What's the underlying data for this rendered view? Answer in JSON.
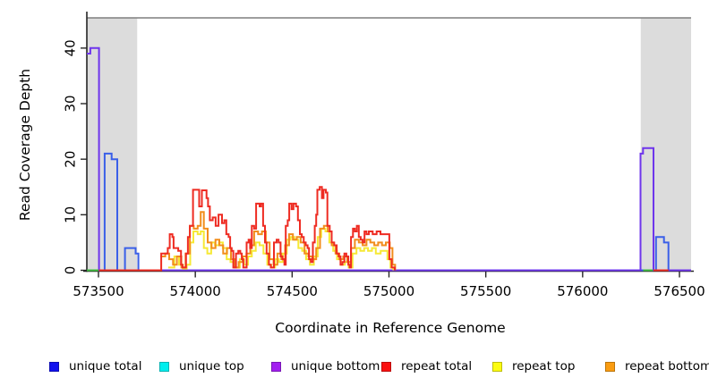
{
  "chart_data": {
    "type": "line",
    "step": true,
    "title": "",
    "xlabel": "Coordinate in Reference Genome",
    "ylabel": "Read Coverage Depth",
    "xlim": [
      573440,
      576560
    ],
    "ylim": [
      0,
      45
    ],
    "x_ticks": [
      573500,
      574000,
      574500,
      575000,
      575500,
      576000,
      576500
    ],
    "y_ticks": [
      0,
      10,
      20,
      30,
      40
    ],
    "grid": false,
    "legend_position": "bottom",
    "masked_regions": [
      {
        "name": "masked-region-left",
        "x0": 573440,
        "x1": 573700,
        "color": "#DCDCDC"
      },
      {
        "name": "masked-region-right",
        "x0": 576300,
        "x1": 576560,
        "color": "#DCDCDC"
      }
    ],
    "series": [
      {
        "name": "unique total",
        "line_color": "#3A5FE8",
        "swatch_color": "#1111EE",
        "segments": [
          [
            [
              573440,
              0
            ],
            [
              573532,
              21
            ],
            [
              573568,
              20
            ],
            [
              573597,
              0
            ],
            [
              573637,
              4
            ],
            [
              573692,
              3
            ],
            [
              573706,
              0
            ],
            [
              576379,
              6
            ],
            [
              576420,
              5
            ],
            [
              576443,
              0
            ],
            [
              576560,
              0
            ]
          ]
        ]
      },
      {
        "name": "unique top",
        "line_color": "#00EEEE",
        "swatch_color": "#00EEEE",
        "segments": []
      },
      {
        "name": "unique bottom",
        "line_color": "#6E35EC",
        "swatch_color": "#A21FF0",
        "segments": [
          [
            [
              573440,
              39
            ],
            [
              573458,
              40
            ],
            [
              573503,
              0
            ],
            [
              576299,
              21
            ],
            [
              576312,
              22
            ],
            [
              576366,
              0
            ],
            [
              576560,
              0
            ]
          ]
        ]
      },
      {
        "name": "repeat top",
        "line_color": "#F6E935",
        "swatch_color": "#FCFC11",
        "segments": [
          [
            [
              573860,
              0.5
            ],
            [
              573892,
              2.5
            ],
            [
              573916,
              1
            ],
            [
              573936,
              0.3
            ],
            [
              573956,
              1
            ],
            [
              573974,
              5
            ],
            [
              573990,
              7
            ],
            [
              574012,
              6.5
            ],
            [
              574028,
              7
            ],
            [
              574044,
              4
            ],
            [
              574062,
              3
            ],
            [
              574082,
              5
            ],
            [
              574102,
              4.5
            ],
            [
              574122,
              5
            ],
            [
              574142,
              4
            ],
            [
              574162,
              2
            ],
            [
              574182,
              1.5
            ],
            [
              574200,
              0.5
            ],
            [
              574230,
              2
            ],
            [
              574252,
              1
            ],
            [
              574272,
              2.5
            ],
            [
              574292,
              3.5
            ],
            [
              574312,
              5
            ],
            [
              574332,
              4.5
            ],
            [
              574352,
              3
            ],
            [
              574372,
              1
            ],
            [
              574392,
              0.5
            ],
            [
              574412,
              2
            ],
            [
              574432,
              1.5
            ],
            [
              574452,
              3
            ],
            [
              574472,
              5.5
            ],
            [
              574492,
              6
            ],
            [
              574512,
              5.5
            ],
            [
              574532,
              4
            ],
            [
              574552,
              3.5
            ],
            [
              574572,
              2
            ],
            [
              574592,
              1
            ],
            [
              574612,
              2.5
            ],
            [
              574632,
              6
            ],
            [
              574650,
              7.5
            ],
            [
              574672,
              7
            ],
            [
              574692,
              5
            ],
            [
              574712,
              3.5
            ],
            [
              574732,
              2
            ],
            [
              574752,
              1
            ],
            [
              574772,
              1.5
            ],
            [
              574792,
              0.5
            ],
            [
              574812,
              3
            ],
            [
              574832,
              4
            ],
            [
              574852,
              3.5
            ],
            [
              574872,
              4
            ],
            [
              574892,
              3.5
            ],
            [
              574912,
              4
            ],
            [
              574932,
              3
            ],
            [
              574957,
              3.5
            ],
            [
              574992,
              2
            ],
            [
              575008,
              0.5
            ],
            [
              575022,
              0
            ]
          ]
        ]
      },
      {
        "name": "repeat bottom",
        "line_color": "#F28D1C",
        "swatch_color": "#FA9C11",
        "segments": [
          [
            [
              573820,
              2.5
            ],
            [
              573845,
              3
            ],
            [
              573865,
              2
            ],
            [
              573885,
              1
            ],
            [
              573905,
              2.5
            ],
            [
              573928,
              0.5
            ],
            [
              573950,
              3
            ],
            [
              573972,
              8
            ],
            [
              573992,
              7.5
            ],
            [
              574012,
              8
            ],
            [
              574028,
              10.5
            ],
            [
              574044,
              7.5
            ],
            [
              574064,
              5
            ],
            [
              574084,
              4
            ],
            [
              574104,
              5.5
            ],
            [
              574124,
              4.5
            ],
            [
              574144,
              3
            ],
            [
              574164,
              4
            ],
            [
              574184,
              2
            ],
            [
              574204,
              0.5
            ],
            [
              574224,
              1.5
            ],
            [
              574244,
              2.5
            ],
            [
              574264,
              3
            ],
            [
              574284,
              4.5
            ],
            [
              574304,
              7
            ],
            [
              574324,
              6.5
            ],
            [
              574344,
              7
            ],
            [
              574364,
              5
            ],
            [
              574384,
              2
            ],
            [
              574404,
              1
            ],
            [
              574424,
              3
            ],
            [
              574444,
              2
            ],
            [
              574464,
              4.5
            ],
            [
              574484,
              6.5
            ],
            [
              574504,
              5.5
            ],
            [
              574524,
              6
            ],
            [
              574544,
              5
            ],
            [
              574564,
              3
            ],
            [
              574584,
              2.5
            ],
            [
              574604,
              2
            ],
            [
              574624,
              4
            ],
            [
              574644,
              7.5
            ],
            [
              574664,
              8
            ],
            [
              574684,
              7
            ],
            [
              574704,
              4.5
            ],
            [
              574724,
              3
            ],
            [
              574744,
              2
            ],
            [
              574764,
              2.5
            ],
            [
              574784,
              1.5
            ],
            [
              574804,
              4
            ],
            [
              574824,
              5.5
            ],
            [
              574844,
              5
            ],
            [
              574864,
              4.5
            ],
            [
              574884,
              5.5
            ],
            [
              574904,
              5
            ],
            [
              574924,
              4.5
            ],
            [
              574944,
              5
            ],
            [
              574964,
              4.5
            ],
            [
              574984,
              5
            ],
            [
              575004,
              4
            ],
            [
              575018,
              1
            ],
            [
              575032,
              0
            ]
          ]
        ]
      },
      {
        "name": "repeat total",
        "line_color": "#EE2B22",
        "swatch_color": "#FA1111",
        "segments": [
          [
            [
              573503,
              0
            ],
            [
              573824,
              3
            ],
            [
              573858,
              4
            ],
            [
              573868,
              6.5
            ],
            [
              573882,
              6
            ],
            [
              573888,
              4
            ],
            [
              573912,
              3.5
            ],
            [
              573926,
              1
            ],
            [
              573934,
              0.5
            ],
            [
              573952,
              3
            ],
            [
              573962,
              6
            ],
            [
              573972,
              8
            ],
            [
              573988,
              14.5
            ],
            [
              574020,
              11.5
            ],
            [
              574034,
              14.4
            ],
            [
              574058,
              13
            ],
            [
              574066,
              11.5
            ],
            [
              574075,
              9
            ],
            [
              574090,
              9.5
            ],
            [
              574105,
              8
            ],
            [
              574120,
              10
            ],
            [
              574138,
              8.5
            ],
            [
              574150,
              9
            ],
            [
              574160,
              6.5
            ],
            [
              574172,
              6
            ],
            [
              574180,
              4
            ],
            [
              574188,
              3.5
            ],
            [
              574196,
              0.5
            ],
            [
              574210,
              3
            ],
            [
              574222,
              3.5
            ],
            [
              574232,
              3
            ],
            [
              574240,
              2
            ],
            [
              574248,
              0.5
            ],
            [
              574265,
              5
            ],
            [
              574275,
              5.5
            ],
            [
              574283,
              4
            ],
            [
              574292,
              8
            ],
            [
              574304,
              7.5
            ],
            [
              574314,
              12
            ],
            [
              574332,
              11.5
            ],
            [
              574340,
              12
            ],
            [
              574350,
              8
            ],
            [
              574360,
              5
            ],
            [
              574368,
              3
            ],
            [
              574380,
              1
            ],
            [
              574390,
              0.5
            ],
            [
              574406,
              5
            ],
            [
              574420,
              5.5
            ],
            [
              574430,
              5
            ],
            [
              574440,
              2.5
            ],
            [
              574450,
              2
            ],
            [
              574460,
              1
            ],
            [
              574467,
              8
            ],
            [
              574477,
              9
            ],
            [
              574485,
              12
            ],
            [
              574497,
              11
            ],
            [
              574507,
              12
            ],
            [
              574520,
              11.5
            ],
            [
              574530,
              9
            ],
            [
              574540,
              6.5
            ],
            [
              574550,
              6
            ],
            [
              574560,
              5
            ],
            [
              574570,
              4.5
            ],
            [
              574580,
              4
            ],
            [
              574587,
              2
            ],
            [
              574597,
              1.5
            ],
            [
              574607,
              5
            ],
            [
              574617,
              8
            ],
            [
              574624,
              10
            ],
            [
              574630,
              14.5
            ],
            [
              574642,
              15
            ],
            [
              574654,
              13
            ],
            [
              574662,
              14.5
            ],
            [
              574674,
              14
            ],
            [
              574682,
              8
            ],
            [
              574694,
              7
            ],
            [
              574704,
              5
            ],
            [
              574717,
              4.5
            ],
            [
              574730,
              3
            ],
            [
              574740,
              2.5
            ],
            [
              574750,
              1
            ],
            [
              574760,
              1.5
            ],
            [
              574770,
              3
            ],
            [
              574780,
              2.5
            ],
            [
              574790,
              1
            ],
            [
              574797,
              0.5
            ],
            [
              574804,
              6
            ],
            [
              574814,
              7.5
            ],
            [
              574824,
              7
            ],
            [
              574834,
              8
            ],
            [
              574844,
              6
            ],
            [
              574854,
              5.5
            ],
            [
              574864,
              5
            ],
            [
              574874,
              7
            ],
            [
              574884,
              6.5
            ],
            [
              574896,
              7
            ],
            [
              574916,
              6.5
            ],
            [
              574936,
              7
            ],
            [
              574956,
              6.5
            ],
            [
              574990,
              6.5
            ],
            [
              575002,
              2
            ],
            [
              575014,
              0.5
            ],
            [
              575030,
              0
            ]
          ],
          [
            [
              576366,
              0
            ],
            [
              576443,
              0
            ]
          ]
        ]
      }
    ],
    "baseline_overlap_segments": [
      {
        "x0": 573440,
        "x1": 573500,
        "color": "#3FBC3F"
      },
      {
        "x0": 576313,
        "x1": 576363,
        "color": "#3FBC3F"
      }
    ],
    "legend": [
      {
        "label": "unique total",
        "color": "#1111EE"
      },
      {
        "label": "unique top",
        "color": "#00EEEE"
      },
      {
        "label": "unique bottom",
        "color": "#A21FF0"
      },
      {
        "label": "repeat total",
        "color": "#FA1111"
      },
      {
        "label": "repeat top",
        "color": "#FCFC11"
      },
      {
        "label": "repeat bottom",
        "color": "#FA9C11"
      }
    ],
    "frame": {
      "top_line_color": "#7F7F7F",
      "axis_color": "#262626"
    }
  }
}
